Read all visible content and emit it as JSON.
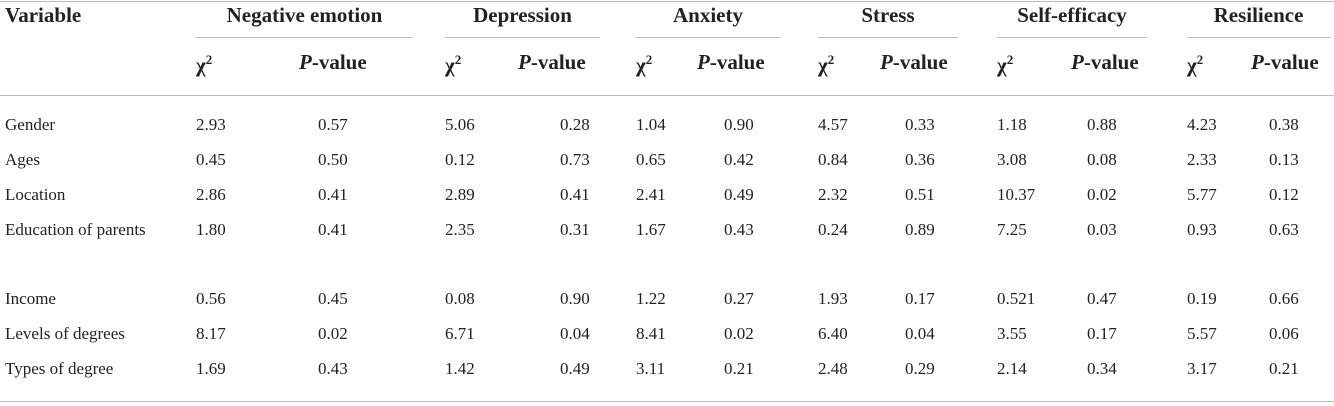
{
  "table": {
    "header": {
      "variable": "Variable",
      "groups": [
        "Negative emotion",
        "Depression",
        "Anxiety",
        "Stress",
        "Self-efficacy",
        "Resilience"
      ],
      "chi": {
        "symbol": "χ",
        "sup": "2"
      },
      "p": {
        "italic": "P",
        "rest": "-value"
      }
    },
    "rows": [
      [
        "Gender",
        "2.93",
        "0.57",
        "5.06",
        "0.28",
        "1.04",
        "0.90",
        "4.57",
        "0.33",
        "1.18",
        "0.88",
        "4.23",
        "0.38"
      ],
      [
        "Ages",
        "0.45",
        "0.50",
        "0.12",
        "0.73",
        "0.65",
        "0.42",
        "0.84",
        "0.36",
        "3.08",
        "0.08",
        "2.33",
        "0.13"
      ],
      [
        "Location",
        "2.86",
        "0.41",
        "2.89",
        "0.41",
        "2.41",
        "0.49",
        "2.32",
        "0.51",
        "10.37",
        "0.02",
        "5.77",
        "0.12"
      ],
      [
        "Education of parents",
        "1.80",
        "0.41",
        "2.35",
        "0.31",
        "1.67",
        "0.43",
        "0.24",
        "0.89",
        "7.25",
        "0.03",
        "0.93",
        "0.63"
      ],
      [
        "Income",
        "0.56",
        "0.45",
        "0.08",
        "0.90",
        "1.22",
        "0.27",
        "1.93",
        "0.17",
        "0.521",
        "0.47",
        "0.19",
        "0.66"
      ],
      [
        "Levels of degrees",
        "8.17",
        "0.02",
        "6.71",
        "0.04",
        "8.41",
        "0.02",
        "6.40",
        "0.04",
        "3.55",
        "0.17",
        "5.57",
        "0.06"
      ],
      [
        "Types of degree",
        "1.69",
        "0.43",
        "1.42",
        "0.49",
        "3.11",
        "0.21",
        "2.48",
        "0.29",
        "2.14",
        "0.34",
        "3.17",
        "0.21"
      ]
    ]
  }
}
